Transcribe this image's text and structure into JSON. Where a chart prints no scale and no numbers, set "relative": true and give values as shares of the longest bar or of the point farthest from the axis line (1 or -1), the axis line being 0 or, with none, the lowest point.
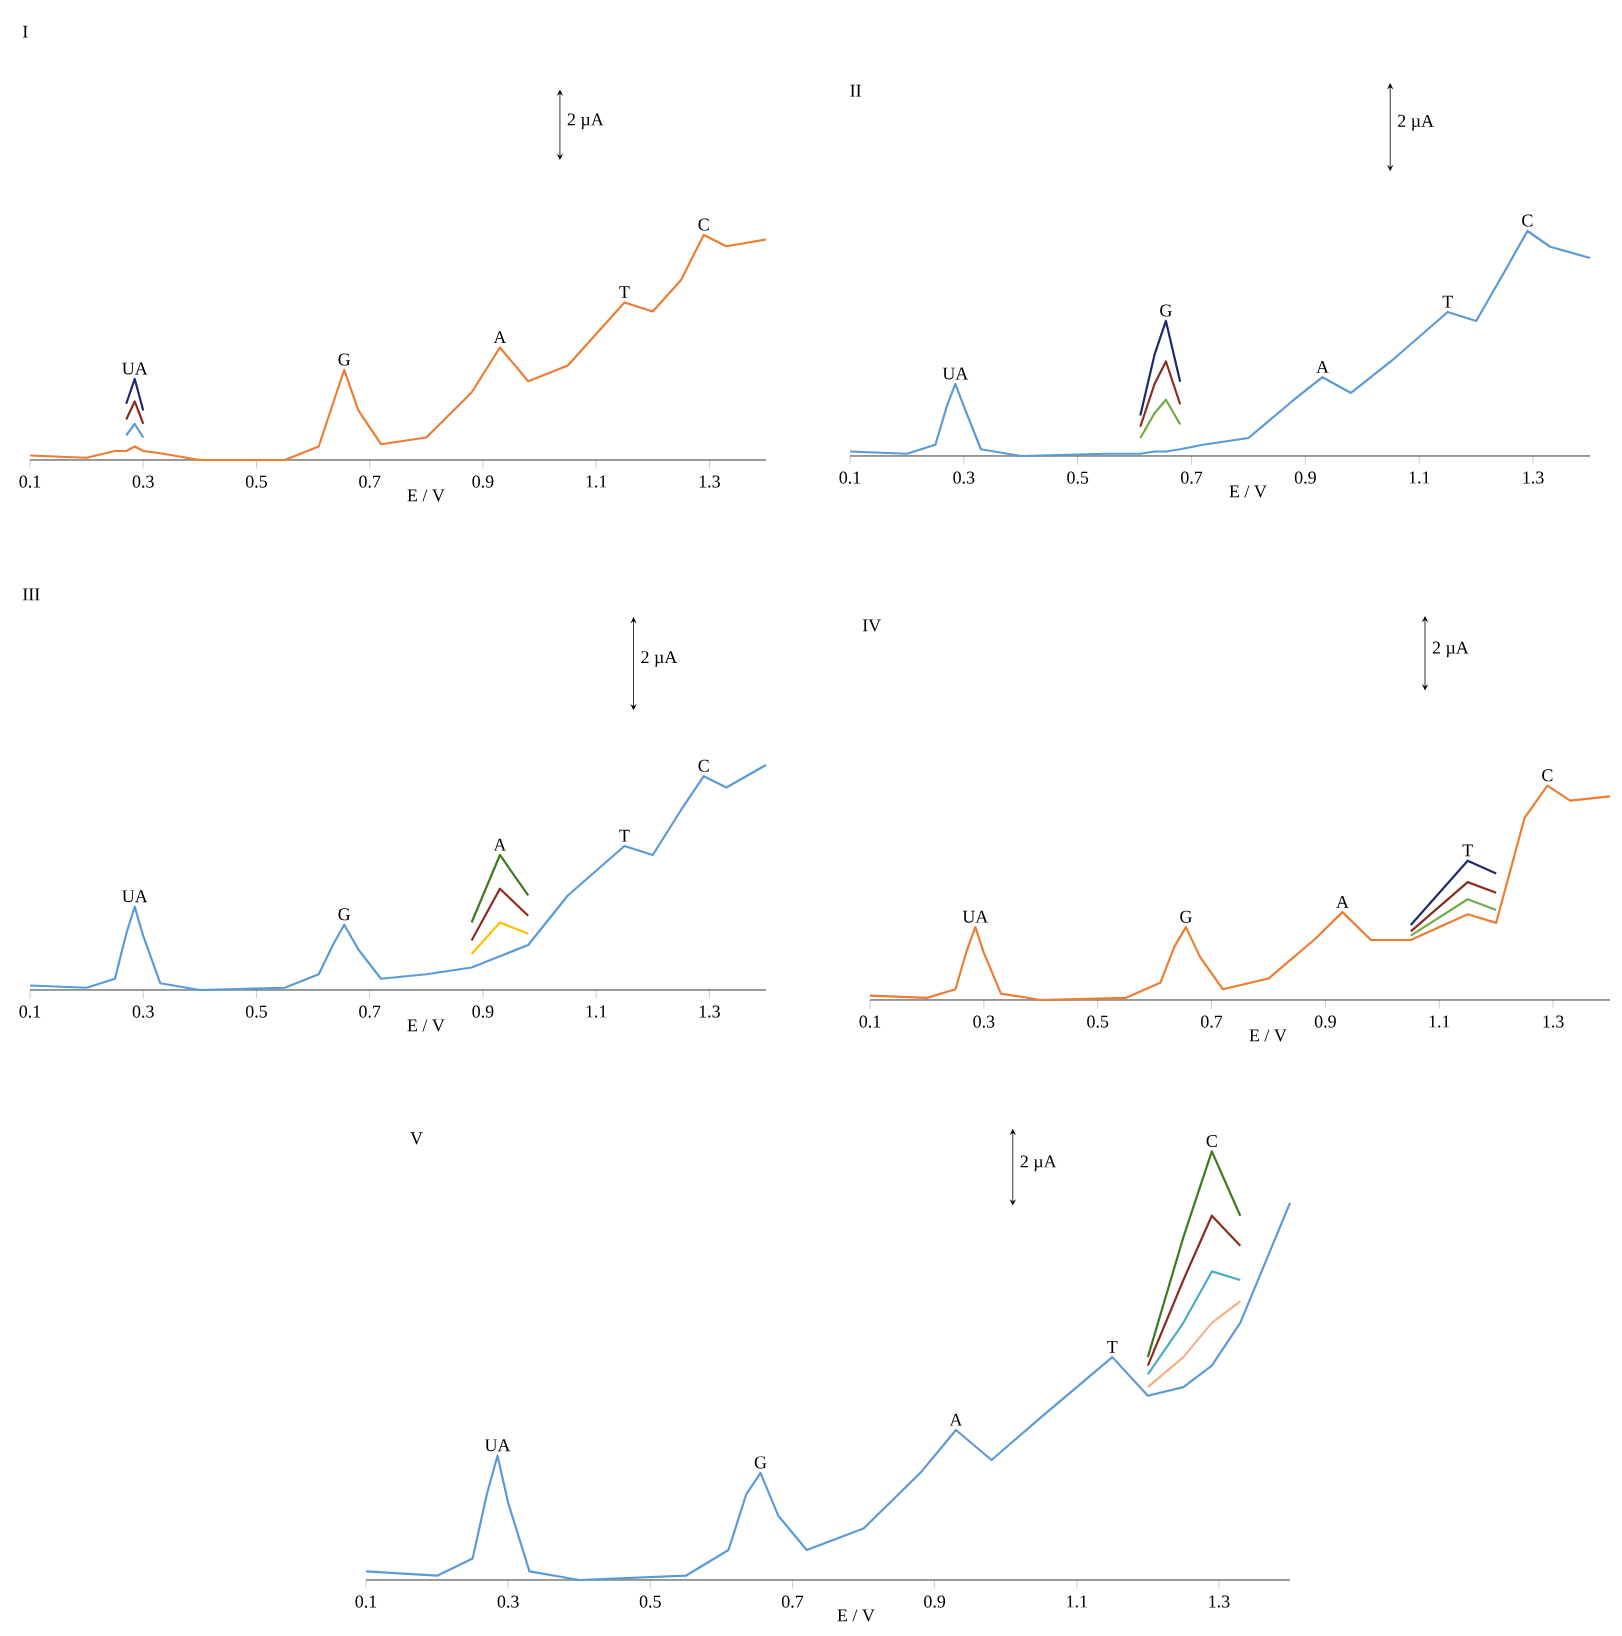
{
  "chart_data": [
    {
      "type": "line",
      "title": "I",
      "xlabel": "E / V",
      "relative": true,
      "xlim": [
        0.1,
        1.4
      ],
      "xticks": [
        0.1,
        0.3,
        0.5,
        0.7,
        0.9,
        1.1,
        1.3
      ],
      "x": [
        0.1,
        0.2,
        0.25,
        0.27,
        0.285,
        0.3,
        0.33,
        0.4,
        0.55,
        0.61,
        0.635,
        0.655,
        0.68,
        0.72,
        0.8,
        0.88,
        0.93,
        0.98,
        1.05,
        1.15,
        1.2,
        1.25,
        1.29,
        1.33,
        1.4
      ],
      "series": [
        {
          "color": "#1f2a6b",
          "values": [
            null,
            null,
            null,
            0.25,
            0.36,
            0.22,
            null,
            null,
            null,
            null,
            null,
            null,
            null,
            null,
            null,
            null,
            null,
            null,
            null,
            null,
            null,
            null,
            null,
            null,
            null
          ]
        },
        {
          "color": "#8b2d1e",
          "values": [
            null,
            null,
            null,
            0.18,
            0.26,
            0.16,
            null,
            null,
            null,
            null,
            null,
            null,
            null,
            null,
            null,
            null,
            null,
            null,
            null,
            null,
            null,
            null,
            null,
            null,
            null
          ]
        },
        {
          "color": "#5b9bd5",
          "values": [
            null,
            null,
            null,
            0.11,
            0.16,
            0.1,
            null,
            null,
            null,
            null,
            null,
            null,
            null,
            null,
            null,
            null,
            null,
            null,
            null,
            null,
            null,
            null,
            null,
            null,
            null
          ]
        },
        {
          "color": "#ed7d31",
          "values": [
            0.02,
            0.01,
            0.04,
            0.04,
            0.06,
            0.04,
            0.03,
            0.0,
            0.0,
            0.06,
            0.25,
            0.4,
            0.22,
            0.07,
            0.1,
            0.3,
            0.5,
            0.35,
            0.42,
            0.7,
            0.66,
            0.8,
            1.0,
            0.95,
            0.98
          ]
        }
      ],
      "annotations": [
        {
          "text": "UA",
          "x": 0.285,
          "y": 0.36
        },
        {
          "text": "G",
          "x": 0.655,
          "y": 0.4
        },
        {
          "text": "A",
          "x": 0.93,
          "y": 0.5
        },
        {
          "text": "T",
          "x": 1.15,
          "y": 0.7
        },
        {
          "text": "C",
          "x": 1.29,
          "y": 1.0
        },
        "2 µA"
      ]
    },
    {
      "type": "line",
      "title": "II",
      "xlabel": "E / V",
      "relative": true,
      "xlim": [
        0.1,
        1.4
      ],
      "xticks": [
        0.1,
        0.3,
        0.5,
        0.7,
        0.9,
        1.1,
        1.3
      ],
      "x": [
        0.1,
        0.2,
        0.25,
        0.27,
        0.285,
        0.3,
        0.33,
        0.4,
        0.55,
        0.61,
        0.635,
        0.655,
        0.68,
        0.72,
        0.8,
        0.88,
        0.93,
        0.98,
        1.05,
        1.15,
        1.2,
        1.25,
        1.29,
        1.33,
        1.4
      ],
      "series": [
        {
          "color": "#1f2a6b",
          "values": [
            null,
            null,
            null,
            null,
            null,
            null,
            null,
            null,
            null,
            0.18,
            0.45,
            0.6,
            0.33,
            null,
            null,
            null,
            null,
            null,
            null,
            null,
            null,
            null,
            null,
            null,
            null
          ]
        },
        {
          "color": "#8b2d1e",
          "values": [
            null,
            null,
            null,
            null,
            null,
            null,
            null,
            null,
            null,
            0.13,
            0.32,
            0.42,
            0.23,
            null,
            null,
            null,
            null,
            null,
            null,
            null,
            null,
            null,
            null,
            null,
            null
          ]
        },
        {
          "color": "#70ad47",
          "values": [
            null,
            null,
            null,
            null,
            null,
            null,
            null,
            null,
            null,
            0.08,
            0.19,
            0.25,
            0.14,
            null,
            null,
            null,
            null,
            null,
            null,
            null,
            null,
            null,
            null,
            null,
            null
          ]
        },
        {
          "color": "#5b9bd5",
          "values": [
            0.02,
            0.01,
            0.05,
            0.22,
            0.32,
            0.22,
            0.03,
            0.0,
            0.01,
            0.01,
            0.02,
            0.02,
            0.03,
            0.05,
            0.08,
            0.25,
            0.35,
            0.28,
            0.42,
            0.64,
            0.6,
            0.82,
            1.0,
            0.93,
            0.88
          ]
        }
      ],
      "annotations": [
        {
          "text": "UA",
          "x": 0.285,
          "y": 0.32
        },
        {
          "text": "G",
          "x": 0.655,
          "y": 0.6
        },
        {
          "text": "A",
          "x": 0.93,
          "y": 0.35
        },
        {
          "text": "T",
          "x": 1.15,
          "y": 0.64
        },
        {
          "text": "C",
          "x": 1.29,
          "y": 1.0
        },
        "2 µA"
      ]
    },
    {
      "type": "line",
      "title": "III",
      "xlabel": "E / V",
      "relative": true,
      "xlim": [
        0.1,
        1.4
      ],
      "xticks": [
        0.1,
        0.3,
        0.5,
        0.7,
        0.9,
        1.1,
        1.3
      ],
      "x": [
        0.1,
        0.2,
        0.25,
        0.27,
        0.285,
        0.3,
        0.33,
        0.4,
        0.55,
        0.61,
        0.635,
        0.655,
        0.68,
        0.72,
        0.8,
        0.88,
        0.93,
        0.98,
        1.05,
        1.15,
        1.2,
        1.25,
        1.29,
        1.33,
        1.4
      ],
      "series": [
        {
          "color": "#3c7a1e",
          "values": [
            null,
            null,
            null,
            null,
            null,
            null,
            null,
            null,
            null,
            null,
            null,
            null,
            null,
            null,
            null,
            0.3,
            0.6,
            0.42,
            null,
            null,
            null,
            null,
            null,
            null,
            null
          ]
        },
        {
          "color": "#8b2d1e",
          "values": [
            null,
            null,
            null,
            null,
            null,
            null,
            null,
            null,
            null,
            null,
            null,
            null,
            null,
            null,
            null,
            0.22,
            0.45,
            0.33,
            null,
            null,
            null,
            null,
            null,
            null,
            null
          ]
        },
        {
          "color": "#ffc000",
          "values": [
            null,
            null,
            null,
            null,
            null,
            null,
            null,
            null,
            null,
            null,
            null,
            null,
            null,
            null,
            null,
            0.16,
            0.3,
            0.25,
            null,
            null,
            null,
            null,
            null,
            null,
            null
          ]
        },
        {
          "color": "#5b9bd5",
          "values": [
            0.02,
            0.01,
            0.05,
            0.25,
            0.37,
            0.24,
            0.03,
            0.0,
            0.01,
            0.07,
            0.2,
            0.29,
            0.18,
            0.05,
            0.07,
            0.1,
            0.15,
            0.2,
            0.42,
            0.64,
            0.6,
            0.8,
            0.95,
            0.9,
            1.0
          ]
        }
      ],
      "annotations": [
        {
          "text": "UA",
          "x": 0.285,
          "y": 0.37
        },
        {
          "text": "G",
          "x": 0.655,
          "y": 0.29
        },
        {
          "text": "A",
          "x": 0.93,
          "y": 0.6
        },
        {
          "text": "T",
          "x": 1.15,
          "y": 0.64
        },
        {
          "text": "C",
          "x": 1.29,
          "y": 0.95
        },
        "2 µA"
      ]
    },
    {
      "type": "line",
      "title": "IV",
      "xlabel": "E / V",
      "relative": true,
      "xlim": [
        0.1,
        1.4
      ],
      "xticks": [
        0.1,
        0.3,
        0.5,
        0.7,
        0.9,
        1.1,
        1.3
      ],
      "x": [
        0.1,
        0.2,
        0.25,
        0.27,
        0.285,
        0.3,
        0.33,
        0.4,
        0.55,
        0.61,
        0.635,
        0.655,
        0.68,
        0.72,
        0.8,
        0.88,
        0.93,
        0.98,
        1.05,
        1.15,
        1.2,
        1.25,
        1.29,
        1.33,
        1.4
      ],
      "series": [
        {
          "color": "#1f2a6b",
          "values": [
            null,
            null,
            null,
            null,
            null,
            null,
            null,
            null,
            null,
            null,
            null,
            null,
            null,
            null,
            null,
            null,
            null,
            null,
            0.35,
            0.65,
            0.59,
            null,
            null,
            null,
            null
          ]
        },
        {
          "color": "#8b2d1e",
          "values": [
            null,
            null,
            null,
            null,
            null,
            null,
            null,
            null,
            null,
            null,
            null,
            null,
            null,
            null,
            null,
            null,
            null,
            null,
            0.32,
            0.55,
            0.5,
            null,
            null,
            null,
            null
          ]
        },
        {
          "color": "#70ad47",
          "values": [
            null,
            null,
            null,
            null,
            null,
            null,
            null,
            null,
            null,
            null,
            null,
            null,
            null,
            null,
            null,
            null,
            null,
            null,
            0.3,
            0.47,
            0.42,
            null,
            null,
            null,
            null
          ]
        },
        {
          "color": "#ed7d31",
          "values": [
            0.02,
            0.01,
            0.05,
            0.23,
            0.34,
            0.22,
            0.03,
            0.0,
            0.01,
            0.08,
            0.25,
            0.34,
            0.2,
            0.05,
            0.1,
            0.28,
            0.41,
            0.28,
            0.28,
            0.4,
            0.36,
            0.85,
            1.0,
            0.93,
            0.95
          ]
        }
      ],
      "annotations": [
        {
          "text": "UA",
          "x": 0.285,
          "y": 0.34
        },
        {
          "text": "G",
          "x": 0.655,
          "y": 0.34
        },
        {
          "text": "A",
          "x": 0.93,
          "y": 0.41
        },
        {
          "text": "T",
          "x": 1.15,
          "y": 0.65
        },
        {
          "text": "C",
          "x": 1.29,
          "y": 1.0
        },
        "2 µA"
      ]
    },
    {
      "type": "line",
      "title": "V",
      "xlabel": "E / V",
      "relative": true,
      "xlim": [
        0.1,
        1.4
      ],
      "xticks": [
        0.1,
        0.3,
        0.5,
        0.7,
        0.9,
        1.1,
        1.3
      ],
      "x": [
        0.1,
        0.2,
        0.25,
        0.27,
        0.285,
        0.3,
        0.33,
        0.4,
        0.55,
        0.61,
        0.635,
        0.655,
        0.68,
        0.72,
        0.8,
        0.88,
        0.93,
        0.98,
        1.05,
        1.15,
        1.2,
        1.25,
        1.29,
        1.33,
        1.4
      ],
      "series": [
        {
          "color": "#3c7a1e",
          "values": [
            null,
            null,
            null,
            null,
            null,
            null,
            null,
            null,
            null,
            null,
            null,
            null,
            null,
            null,
            null,
            null,
            null,
            null,
            null,
            null,
            0.52,
            0.8,
            1.0,
            0.85,
            null
          ]
        },
        {
          "color": "#8b2d1e",
          "values": [
            null,
            null,
            null,
            null,
            null,
            null,
            null,
            null,
            null,
            null,
            null,
            null,
            null,
            null,
            null,
            null,
            null,
            null,
            null,
            null,
            0.5,
            0.7,
            0.85,
            0.78,
            null
          ]
        },
        {
          "color": "#4bacc6",
          "values": [
            null,
            null,
            null,
            null,
            null,
            null,
            null,
            null,
            null,
            null,
            null,
            null,
            null,
            null,
            null,
            null,
            null,
            null,
            null,
            null,
            0.48,
            0.6,
            0.72,
            0.7,
            null
          ]
        },
        {
          "color": "#f4b183",
          "values": [
            null,
            null,
            null,
            null,
            null,
            null,
            null,
            null,
            null,
            null,
            null,
            null,
            null,
            null,
            null,
            null,
            null,
            null,
            null,
            null,
            0.45,
            0.52,
            0.6,
            0.65,
            null
          ]
        },
        {
          "color": "#5b9bd5",
          "values": [
            0.02,
            0.01,
            0.05,
            0.2,
            0.29,
            0.18,
            0.02,
            0.0,
            0.01,
            0.07,
            0.2,
            0.25,
            0.15,
            0.07,
            0.12,
            0.25,
            0.35,
            0.28,
            0.38,
            0.52,
            0.43,
            0.45,
            0.5,
            0.6,
            0.88
          ]
        }
      ],
      "annotations": [
        {
          "text": "UA",
          "x": 0.285,
          "y": 0.29
        },
        {
          "text": "G",
          "x": 0.655,
          "y": 0.25
        },
        {
          "text": "A",
          "x": 0.93,
          "y": 0.35
        },
        {
          "text": "T",
          "x": 1.15,
          "y": 0.52
        },
        {
          "text": "C",
          "x": 1.29,
          "y": 1.0
        },
        "2 µA"
      ]
    }
  ]
}
